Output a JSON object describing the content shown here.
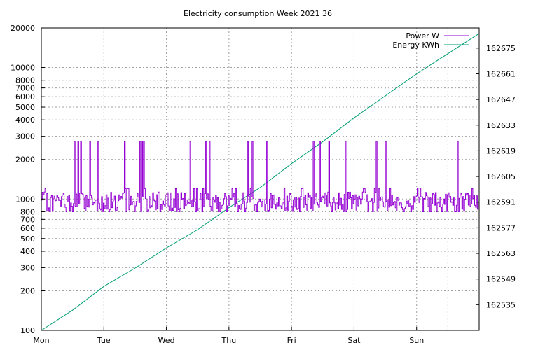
{
  "chart_data": {
    "type": "line",
    "title": "Electricity consumption Week 2021 36",
    "x_axis": {
      "type": "category-time",
      "range_days": [
        0,
        7
      ],
      "tick_labels": [
        "Mon",
        "Tue",
        "Wed",
        "Thu",
        "Fri",
        "Sat",
        "Sun"
      ],
      "tick_days": [
        0,
        1,
        2,
        3,
        4,
        5,
        6
      ],
      "grid": true
    },
    "y_axis_left": {
      "scale": "log",
      "range": [
        100,
        20000
      ],
      "ticks": [
        100,
        200,
        300,
        400,
        500,
        600,
        700,
        800,
        1000,
        2000,
        3000,
        4000,
        5000,
        6000,
        7000,
        8000,
        10000,
        20000
      ],
      "tick_labels": [
        "100",
        "200",
        "300",
        "400",
        "500",
        "600",
        "700",
        "800",
        "1000",
        "2000",
        "3000",
        "4000",
        "5000",
        "6000",
        "7000",
        "8000",
        "10000",
        "20000"
      ],
      "grid": true
    },
    "y_axis_right": {
      "scale": "linear",
      "range": [
        162521,
        162686
      ],
      "ticks": [
        162535,
        162549,
        162563,
        162577,
        162591,
        162605,
        162619,
        162633,
        162647,
        162661,
        162675
      ],
      "tick_labels": [
        "162535",
        "162549",
        "162563",
        "162577",
        "162591",
        "162605",
        "162619",
        "162633",
        "162647",
        "162661",
        "162675"
      ]
    },
    "legend": {
      "placement": "top-right",
      "entries": [
        "Power W",
        "Energy KWh"
      ]
    },
    "series": [
      {
        "name": "Power W",
        "axis": "left",
        "color": "#9400d3",
        "baseline_range": [
          800,
          1200
        ],
        "typical": 950,
        "spike_value": 2750,
        "spike_days": [
          0.52,
          0.58,
          0.62,
          0.78,
          0.9,
          1.33,
          1.57,
          1.6,
          1.63,
          2.37,
          2.62,
          2.68,
          3.3,
          3.37,
          3.6,
          4.35,
          4.45,
          4.6,
          4.85,
          5.35,
          5.5,
          6.65
        ]
      },
      {
        "name": "Energy KWh",
        "axis": "right",
        "color": "#009e73",
        "x_days": [
          0,
          0.5,
          1,
          1.5,
          2,
          2.5,
          3,
          3.5,
          4,
          4.5,
          5,
          5.5,
          6,
          6.5,
          7
        ],
        "values": [
          162521,
          162532,
          162545,
          162555,
          162566,
          162576,
          162588,
          162599,
          162612,
          162624,
          162637,
          162649,
          162661,
          162672,
          162683
        ]
      }
    ]
  }
}
